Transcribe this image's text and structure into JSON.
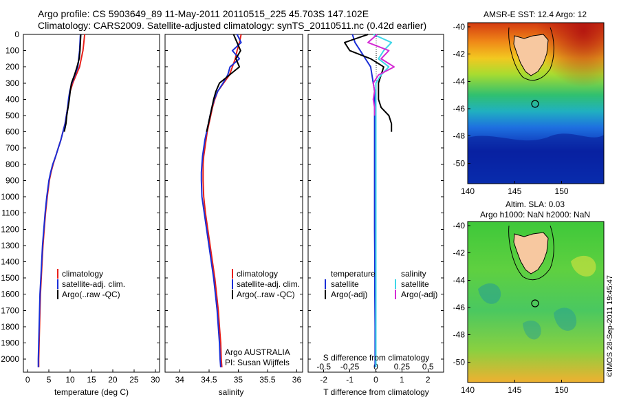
{
  "header": {
    "title_line1": "Argo profile: CS 5903649_89 11-May-2011 20110515_225 45.703S 147.102E",
    "title_line2": "Climatology: CARS2009. Satellite-adjusted climatology: synTS_20110511.nc (0.42d earlier)"
  },
  "colors": {
    "climatology": "#e8201a",
    "satellite": "#1a2ed6",
    "argo": "#000000",
    "sat_salinity": "#3fd6e8",
    "argo_salinity": "#d42ad4",
    "land": "#f7c8a0"
  },
  "chart_data": [
    {
      "type": "line",
      "id": "temperature_panel",
      "xlabel": "temperature (deg C)",
      "xlim": [
        -1,
        31
      ],
      "ylim": [
        2080,
        0
      ],
      "xticks": [
        0,
        5,
        10,
        15,
        20,
        25,
        30
      ],
      "yticks": [
        0,
        100,
        200,
        300,
        400,
        500,
        600,
        700,
        800,
        900,
        1000,
        1100,
        1200,
        1300,
        1400,
        1500,
        1600,
        1700,
        1800,
        1900,
        2000
      ],
      "legend": [
        "climatology",
        "satellite-adj. clim.",
        "Argo(..raw -QC)"
      ],
      "depth": [
        0,
        50,
        100,
        150,
        200,
        250,
        300,
        350,
        400,
        450,
        500,
        550,
        600,
        650,
        700,
        750,
        800,
        850,
        900,
        1000,
        1100,
        1200,
        1300,
        1400,
        1500,
        1600,
        1700,
        1800,
        1900,
        2000,
        2050
      ],
      "series": [
        {
          "name": "climatology",
          "color": "#e8201a",
          "values": [
            13.4,
            13.2,
            13.0,
            12.6,
            12.2,
            11.4,
            10.6,
            10.0,
            9.7,
            9.4,
            9.1,
            8.8,
            8.3,
            7.8,
            7.2,
            6.6,
            6.0,
            5.5,
            5.1,
            4.6,
            4.2,
            3.9,
            3.6,
            3.4,
            3.2,
            3.0,
            2.9,
            2.8,
            2.7,
            2.6,
            2.6
          ]
        },
        {
          "name": "satellite-adj. clim.",
          "color": "#1a2ed6",
          "values": [
            12.4,
            12.3,
            12.2,
            12.0,
            11.8,
            11.1,
            10.4,
            9.9,
            9.6,
            9.4,
            9.1,
            8.8,
            8.3,
            7.8,
            7.2,
            6.6,
            5.9,
            5.4,
            5.0,
            4.5,
            4.1,
            3.8,
            3.5,
            3.3,
            3.1,
            2.9,
            2.8,
            2.7,
            2.6,
            2.5,
            2.5
          ]
        },
        {
          "name": "Argo(..raw -QC)",
          "color": "#000000",
          "values": [
            12.5,
            12.4,
            12.3,
            12.1,
            11.6,
            11.0,
            10.3,
            10.0,
            9.8,
            9.5,
            9.2,
            9.0,
            8.6,
            null,
            null,
            null,
            null,
            null,
            null,
            null,
            null,
            null,
            null,
            null,
            null,
            null,
            null,
            null,
            null,
            null,
            null
          ]
        }
      ]
    },
    {
      "type": "line",
      "id": "salinity_panel",
      "xlabel": "salinity",
      "xlim": [
        33.75,
        36.1
      ],
      "ylim": [
        2080,
        0
      ],
      "xticks": [
        34,
        34.5,
        35,
        35.5,
        36
      ],
      "legend": [
        "climatology",
        "satellite-adj. clim.",
        "Argo(..raw -QC)"
      ],
      "annotation_line1": "Argo AUSTRALIA",
      "annotation_line2": "PI: Susan Wijffels",
      "depth": [
        0,
        50,
        100,
        150,
        200,
        250,
        300,
        350,
        400,
        450,
        500,
        550,
        600,
        650,
        700,
        750,
        800,
        850,
        900,
        1000,
        1100,
        1200,
        1300,
        1400,
        1500,
        1600,
        1700,
        1800,
        1900,
        2000,
        2050
      ],
      "series": [
        {
          "name": "climatology",
          "color": "#e8201a",
          "values": [
            35.05,
            35.02,
            34.98,
            34.95,
            34.9,
            34.85,
            34.75,
            34.65,
            34.6,
            34.56,
            34.53,
            34.5,
            34.47,
            34.45,
            34.43,
            34.41,
            34.4,
            34.4,
            34.4,
            34.41,
            34.44,
            34.48,
            34.52,
            34.56,
            34.6,
            34.63,
            34.66,
            34.68,
            34.7,
            34.71,
            34.72
          ]
        },
        {
          "name": "satellite-adj. clim.",
          "color": "#1a2ed6",
          "values": [
            34.98,
            35.05,
            34.9,
            35.02,
            34.86,
            34.82,
            34.74,
            34.65,
            34.59,
            34.55,
            34.52,
            34.49,
            34.46,
            34.43,
            34.41,
            34.39,
            34.38,
            34.37,
            34.37,
            34.38,
            34.42,
            34.46,
            34.5,
            34.54,
            34.58,
            34.61,
            34.64,
            34.66,
            34.68,
            34.69,
            34.7
          ]
        },
        {
          "name": "Argo(..raw -QC)",
          "color": "#000000",
          "values": [
            34.92,
            34.98,
            35.04,
            34.96,
            35.02,
            34.85,
            34.68,
            34.62,
            34.58,
            34.55,
            34.52,
            34.49,
            34.46,
            null,
            null,
            null,
            null,
            null,
            null,
            null,
            null,
            null,
            null,
            null,
            null,
            null,
            null,
            null,
            null,
            null,
            null
          ]
        }
      ]
    },
    {
      "type": "line",
      "id": "difference_panel",
      "xlabel": "T difference from climatology",
      "xlabel_top": "S difference from climatology",
      "xlim": [
        -2.6,
        2.6
      ],
      "ylim": [
        2080,
        0
      ],
      "xticks_T": [
        -2,
        -1,
        0,
        1,
        2
      ],
      "xticks_S": [
        "-0.5",
        "-0.25",
        "0",
        "0.25",
        "0.5"
      ],
      "legend_left_title": "temperature",
      "legend_right_title": "salinity",
      "legend": [
        "satellite",
        "Argo(-adj)",
        "satellite",
        "Argo(-adj)"
      ],
      "depth": [
        0,
        50,
        100,
        150,
        200,
        250,
        300,
        350,
        400,
        450,
        500,
        550,
        600,
        650,
        700,
        800,
        900,
        1000,
        1200,
        1400,
        1600,
        1800,
        2000,
        2050
      ],
      "series": [
        {
          "name": "temperature satellite",
          "color": "#1a2ed6",
          "values": [
            -0.9,
            -0.8,
            -0.6,
            -0.4,
            -0.2,
            -0.15,
            -0.1,
            -0.05,
            -0.05,
            -0.05,
            -0.05,
            -0.05,
            -0.05,
            -0.05,
            -0.05,
            -0.05,
            -0.05,
            -0.05,
            -0.05,
            -0.04,
            -0.04,
            -0.03,
            -0.03,
            -0.03
          ]
        },
        {
          "name": "temperature Argo(-adj)",
          "color": "#000000",
          "values": [
            -0.3,
            -1.2,
            -1.0,
            -0.2,
            0.3,
            0.2,
            0.1,
            0.1,
            0.1,
            0.2,
            0.5,
            0.6,
            0.6,
            null,
            null,
            null,
            null,
            null,
            null,
            null,
            null,
            null,
            null,
            null
          ]
        },
        {
          "name": "salinity satellite",
          "color": "#3fd6e8",
          "values": [
            -0.1,
            0.6,
            0.3,
            0.1,
            0.5,
            0.2,
            0.0,
            0.0,
            0.0,
            0.0,
            0.0,
            0.0,
            0.0,
            0.0,
            0.0,
            0.0,
            0.0,
            0.0,
            0.0,
            0.0,
            0.0,
            0.0,
            0.0,
            0.0
          ]
        },
        {
          "name": "salinity Argo(-adj)",
          "color": "#d42ad4",
          "values": [
            0.05,
            -0.3,
            0.5,
            0.2,
            0.7,
            0.1,
            -0.1,
            -0.05,
            -0.1,
            -0.05,
            -0.05,
            null,
            null,
            null,
            null,
            null,
            null,
            null,
            null,
            null,
            null,
            null,
            null,
            null
          ]
        }
      ]
    },
    {
      "type": "heatmap",
      "id": "sst_map",
      "title": "AMSR-E SST: 12.4  Argo: 12",
      "xlim": [
        140,
        154.5
      ],
      "ylim": [
        -51.5,
        -39.7
      ],
      "xticks": [
        140,
        145,
        150
      ],
      "yticks": [
        -40,
        -42,
        -44,
        -46,
        -48,
        -50
      ],
      "argo_position": {
        "lon": 147.102,
        "lat": -45.703
      }
    },
    {
      "type": "heatmap",
      "id": "sla_map",
      "title_line1": "Altim. SLA: 0.03",
      "title_line2": "Argo h1000: NaN h2000: NaN",
      "xlim": [
        140,
        154.5
      ],
      "ylim": [
        -51.5,
        -39.7
      ],
      "xticks": [
        140,
        145,
        150
      ],
      "yticks": [
        -40,
        -42,
        -44,
        -46,
        -48,
        -50
      ],
      "argo_position": {
        "lon": 147.102,
        "lat": -45.703
      }
    }
  ],
  "credit": "©IMOS 28-Sep-2011 19:45:47"
}
